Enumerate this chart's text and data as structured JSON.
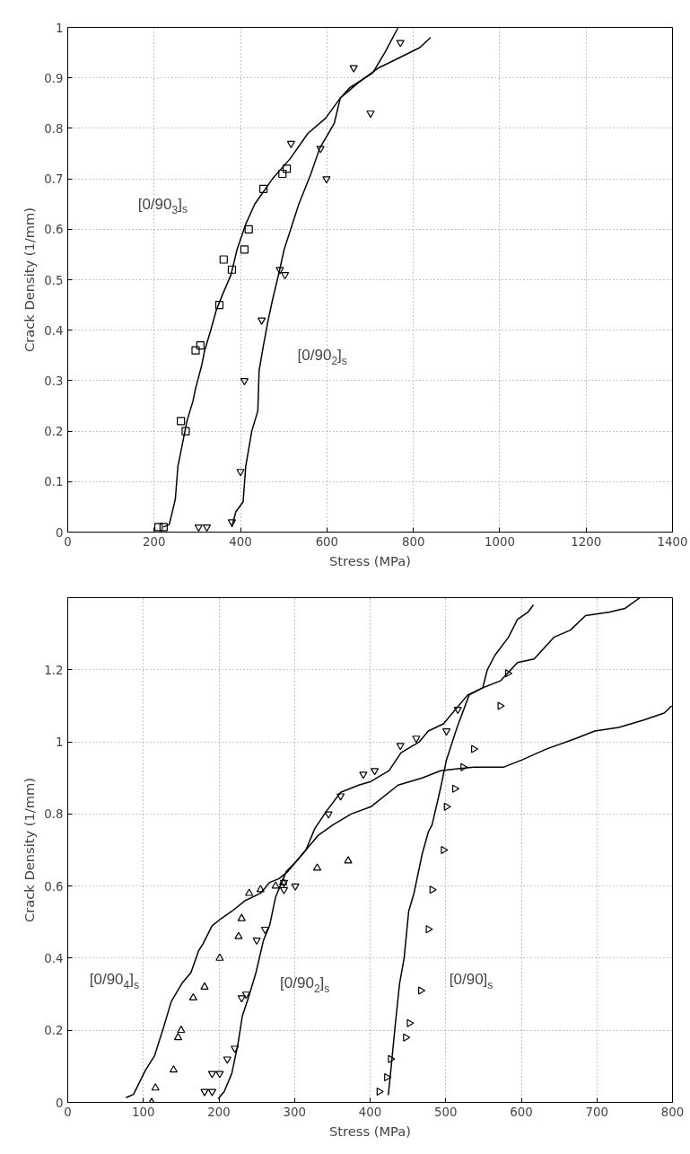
{
  "chart_data": [
    {
      "type": "scatter",
      "xlabel": "Stress (MPa)",
      "ylabel": "Crack Density (1/mm)",
      "xlim": [
        0,
        1400
      ],
      "ylim": [
        0,
        1
      ],
      "xticks": [
        0,
        200,
        400,
        600,
        800,
        1000,
        1200,
        1400
      ],
      "yticks": [
        0,
        0.1,
        0.2,
        0.3,
        0.4,
        0.5,
        0.6,
        0.7,
        0.8,
        0.9,
        1
      ],
      "grid": true,
      "annotations": [
        "[0/90$_{3}$]$_{s}$",
        "[0/90$_{2}$]$_{s}$"
      ],
      "series": [
        {
          "marker": "square",
          "color": "#000000",
          "x": [
            210,
            222,
            262,
            273,
            296,
            307,
            351,
            361,
            380,
            409,
            419,
            453,
            497,
            507
          ],
          "values": [
            0.01,
            0.01,
            0.22,
            0.2,
            0.36,
            0.37,
            0.45,
            0.54,
            0.52,
            0.56,
            0.6,
            0.68,
            0.71,
            0.72
          ]
        },
        {
          "marker": "triangle_down",
          "color": "#000000",
          "x": [
            303,
            322,
            380,
            400,
            409,
            449,
            491,
            503,
            517,
            585,
            599,
            662,
            701,
            770
          ],
          "values": [
            0.01,
            0.01,
            0.02,
            0.12,
            0.3,
            0.42,
            0.52,
            0.51,
            0.77,
            0.76,
            0.7,
            0.92,
            0.83,
            0.97
          ]
        },
        {
          "type": "line",
          "color": "#000000",
          "x": [
            221,
            235,
            249,
            255,
            262,
            276,
            290,
            296,
            310,
            317,
            331,
            344,
            358,
            378,
            392,
            412,
            433,
            474,
            515,
            556,
            597,
            631,
            672,
            720,
            768,
            815,
            840
          ],
          "values": [
            0.01,
            0.015,
            0.065,
            0.13,
            0.16,
            0.22,
            0.26,
            0.285,
            0.33,
            0.36,
            0.4,
            0.44,
            0.47,
            0.51,
            0.56,
            0.61,
            0.65,
            0.7,
            0.74,
            0.79,
            0.82,
            0.86,
            0.89,
            0.92,
            0.94,
            0.96,
            0.98
          ]
        },
        {
          "type": "line",
          "color": "#000000",
          "x": [
            380,
            389,
            406,
            412,
            426,
            440,
            443,
            453,
            464,
            474,
            488,
            501,
            535,
            563,
            583,
            617,
            631,
            652,
            706,
            734,
            765
          ],
          "values": [
            0.01,
            0.04,
            0.06,
            0.13,
            0.2,
            0.24,
            0.32,
            0.37,
            0.42,
            0.46,
            0.51,
            0.56,
            0.65,
            0.71,
            0.76,
            0.81,
            0.86,
            0.88,
            0.91,
            0.95,
            1.0
          ]
        }
      ]
    },
    {
      "type": "scatter",
      "xlabel": "Stress (MPa)",
      "ylabel": "Crack Density (1/mm)",
      "xlim": [
        0,
        800
      ],
      "ylim": [
        0,
        1.4
      ],
      "xticks": [
        0,
        100,
        200,
        300,
        400,
        500,
        600,
        700,
        800
      ],
      "yticks": [
        0,
        0.2,
        0.4,
        0.6,
        0.8,
        1,
        1.2
      ],
      "grid": true,
      "annotations": [
        "[0/90$_{4}$]$_{s}$",
        "[0/90$_{2}$]$_{s}$",
        "[0/90]$_{s}$"
      ],
      "series": [
        {
          "marker": "triangle",
          "color": "#000000",
          "x": [
            111,
            116,
            140,
            146,
            150,
            166,
            181,
            201,
            226,
            230,
            240,
            255,
            275,
            285,
            330,
            371
          ],
          "values": [
            0.0,
            0.04,
            0.09,
            0.18,
            0.2,
            0.29,
            0.32,
            0.4,
            0.46,
            0.51,
            0.58,
            0.59,
            0.6,
            0.61,
            0.65,
            0.67
          ]
        },
        {
          "marker": "triangle_down",
          "color": "#000000",
          "x": [
            181,
            191,
            191,
            201,
            211,
            221,
            230,
            236,
            250,
            261,
            286,
            286,
            301,
            345,
            361,
            391,
            406,
            440,
            461,
            501,
            516
          ],
          "values": [
            0.03,
            0.03,
            0.08,
            0.08,
            0.12,
            0.15,
            0.29,
            0.3,
            0.45,
            0.48,
            0.59,
            0.61,
            0.6,
            0.8,
            0.85,
            0.91,
            0.92,
            0.99,
            1.01,
            1.03,
            1.09
          ]
        },
        {
          "marker": "triangle_right",
          "color": "#000000",
          "x": [
            412,
            422,
            427,
            447,
            452,
            467,
            477,
            482,
            497,
            501,
            512,
            523,
            537,
            572,
            582
          ],
          "values": [
            0.03,
            0.07,
            0.12,
            0.18,
            0.22,
            0.31,
            0.48,
            0.59,
            0.7,
            0.82,
            0.87,
            0.93,
            0.98,
            1.1,
            1.19
          ]
        },
        {
          "type": "line",
          "color": "#000000",
          "x": [
            77,
            87,
            103,
            115,
            127,
            137,
            151,
            163,
            173,
            179,
            191,
            203,
            217,
            235,
            255,
            267,
            279,
            291,
            311,
            331,
            351,
            375,
            401,
            437,
            469,
            493,
            537,
            577,
            601,
            633,
            673,
            697,
            729,
            761,
            789,
            799
          ],
          "values": [
            0.013,
            0.022,
            0.09,
            0.13,
            0.21,
            0.28,
            0.33,
            0.36,
            0.42,
            0.44,
            0.49,
            0.51,
            0.53,
            0.56,
            0.58,
            0.61,
            0.62,
            0.64,
            0.69,
            0.74,
            0.77,
            0.8,
            0.82,
            0.88,
            0.9,
            0.92,
            0.93,
            0.93,
            0.95,
            0.98,
            1.01,
            1.03,
            1.04,
            1.06,
            1.08,
            1.1
          ]
        },
        {
          "type": "line",
          "color": "#000000",
          "x": [
            199,
            207,
            217,
            225,
            231,
            239,
            249,
            259,
            267,
            275,
            283,
            289,
            303,
            315,
            327,
            343,
            361,
            385,
            401,
            425,
            441,
            465,
            477,
            497,
            529,
            549,
            573,
            595,
            617,
            643,
            665,
            685,
            717,
            737,
            757
          ],
          "values": [
            0.01,
            0.03,
            0.08,
            0.16,
            0.24,
            0.29,
            0.36,
            0.45,
            0.49,
            0.57,
            0.61,
            0.64,
            0.67,
            0.7,
            0.76,
            0.81,
            0.86,
            0.88,
            0.89,
            0.92,
            0.97,
            1.0,
            1.03,
            1.05,
            1.13,
            1.15,
            1.17,
            1.22,
            1.23,
            1.29,
            1.31,
            1.35,
            1.36,
            1.37,
            1.4
          ]
        },
        {
          "type": "line",
          "color": "#000000",
          "x": [
            424,
            427,
            433,
            439,
            445,
            451,
            458,
            469,
            477,
            482,
            493,
            501,
            515,
            531,
            549,
            555,
            565,
            583,
            595,
            609,
            616
          ],
          "values": [
            0.02,
            0.08,
            0.21,
            0.33,
            0.4,
            0.53,
            0.58,
            0.69,
            0.75,
            0.77,
            0.87,
            0.95,
            1.04,
            1.13,
            1.15,
            1.2,
            1.24,
            1.29,
            1.34,
            1.36,
            1.38
          ]
        }
      ]
    }
  ]
}
